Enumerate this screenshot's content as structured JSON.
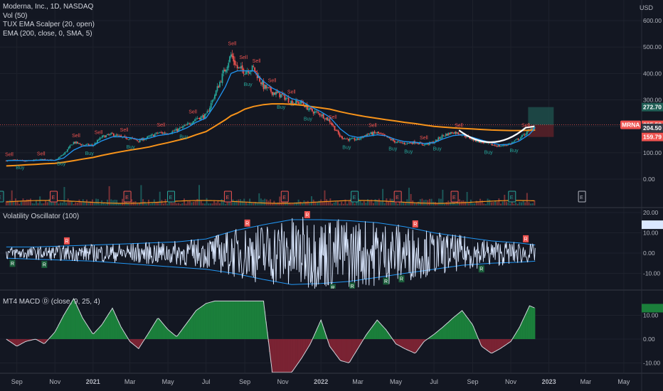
{
  "header": {
    "symbol_line": "Moderna, Inc., 1D, NASDAQ",
    "indicators": [
      "Vol (50)",
      "TUX EMA Scalper (20, open)",
      "EMA (200, close, 0, SMA, 5)"
    ]
  },
  "currency": "USD",
  "pane_titles": {
    "vol_osc": "Volatility Oscillator (100)",
    "macd": "MT4 MACD Ⓓ (close, 9, 25, 4)"
  },
  "price_ticks": [
    "600.00",
    "500.00",
    "400.00",
    "300.00",
    "200.00",
    "100.00",
    "0.00"
  ],
  "osc_ticks": [
    "20.00",
    "10.00",
    "0.00",
    "-10.00"
  ],
  "macd_ticks": [
    "10.00",
    "0.00",
    "-10.00"
  ],
  "date_labels": [
    "Sep",
    "Nov",
    "2021",
    "Mar",
    "May",
    "Jul",
    "Sep",
    "Nov",
    "2022",
    "Mar",
    "May",
    "Jul",
    "Sep",
    "Nov",
    "2023",
    "Mar",
    "May"
  ],
  "price_tags": {
    "target": "272.70",
    "symbol": "MRNA",
    "last": "205.58",
    "entry": "204.50",
    "stop": "159.79"
  },
  "signal_labels": {
    "sell": "Sell",
    "buy": "Buy",
    "earnings": "E",
    "reversal": "R"
  },
  "colors": {
    "background": "#131722",
    "up": "#26a69a",
    "down": "#ef5350",
    "ema_fast": "#2196f3",
    "ema_slow": "#f7931a",
    "osc_line": "#dbe8ff",
    "osc_band": "#2196f3",
    "macd_pos": "#1b7f3b",
    "macd_neg": "#7a2333",
    "target_zone": "#1f4e4a",
    "stop_zone": "#5a2128"
  },
  "chart_data": [
    {
      "type": "candlestick",
      "title": "Moderna, Inc., 1D, NASDAQ",
      "ylabel": "USD",
      "ylim": [
        0,
        640
      ],
      "x": [
        "2020-08-15",
        "2020-09-01",
        "2020-09-15",
        "2020-10-01",
        "2020-10-15",
        "2020-11-01",
        "2020-11-15",
        "2020-12-01",
        "2020-12-15",
        "2021-01-01",
        "2021-01-15",
        "2021-02-01",
        "2021-02-15",
        "2021-03-01",
        "2021-03-15",
        "2021-04-01",
        "2021-04-15",
        "2021-05-01",
        "2021-05-15",
        "2021-06-01",
        "2021-06-15",
        "2021-07-01",
        "2021-07-15",
        "2021-08-01",
        "2021-08-10",
        "2021-08-20",
        "2021-09-01",
        "2021-09-15",
        "2021-10-01",
        "2021-10-15",
        "2021-11-01",
        "2021-11-15",
        "2021-12-01",
        "2021-12-15",
        "2022-01-01",
        "2022-01-15",
        "2022-02-01",
        "2022-02-15",
        "2022-03-01",
        "2022-03-15",
        "2022-04-01",
        "2022-04-15",
        "2022-05-01",
        "2022-05-15",
        "2022-06-01",
        "2022-06-15",
        "2022-07-01",
        "2022-07-15",
        "2022-08-01",
        "2022-08-15",
        "2022-09-01",
        "2022-09-15",
        "2022-10-01",
        "2022-10-15",
        "2022-11-01",
        "2022-11-15",
        "2022-12-01",
        "2022-12-10"
      ],
      "close": [
        70,
        72,
        68,
        72,
        75,
        70,
        95,
        140,
        130,
        128,
        160,
        170,
        158,
        155,
        145,
        160,
        175,
        175,
        185,
        205,
        230,
        240,
        320,
        420,
        470,
        420,
        410,
        420,
        350,
        330,
        315,
        290,
        290,
        260,
        245,
        220,
        160,
        150,
        150,
        170,
        175,
        160,
        140,
        135,
        140,
        130,
        140,
        165,
        178,
        170,
        150,
        140,
        130,
        125,
        135,
        155,
        185,
        205.58
      ],
      "ema_fast": [
        70,
        71,
        70,
        71,
        72,
        71,
        80,
        110,
        125,
        127,
        145,
        160,
        160,
        157,
        150,
        155,
        165,
        170,
        178,
        195,
        215,
        232,
        280,
        350,
        400,
        410,
        410,
        410,
        370,
        345,
        325,
        305,
        295,
        275,
        255,
        235,
        190,
        165,
        158,
        162,
        168,
        164,
        150,
        142,
        140,
        135,
        138,
        152,
        165,
        168,
        158,
        148,
        138,
        130,
        132,
        145,
        170,
        195
      ],
      "ema_slow": [
        50,
        52,
        54,
        56,
        58,
        60,
        64,
        70,
        76,
        82,
        90,
        98,
        104,
        110,
        115,
        122,
        130,
        138,
        146,
        156,
        168,
        180,
        200,
        225,
        240,
        250,
        265,
        275,
        282,
        285,
        285,
        283,
        280,
        275,
        270,
        265,
        255,
        248,
        242,
        236,
        230,
        225,
        220,
        215,
        210,
        205,
        200,
        197,
        194,
        192,
        190,
        188,
        186,
        185,
        184,
        184,
        185,
        186
      ],
      "series_names": [
        "TUX EMA Scalper (20, open)",
        "EMA (200, close, 0, SMA, 5)"
      ]
    },
    {
      "type": "bar",
      "title": "Vol (50)",
      "earnings_dates": [
        "2020-08-05",
        "2020-10-30",
        "2021-02-25",
        "2021-05-06",
        "2021-08-05",
        "2021-11-04",
        "2022-02-24",
        "2022-05-04",
        "2022-08-03",
        "2022-11-03",
        "2023-02-23"
      ]
    },
    {
      "type": "line",
      "title": "Volatility Oscillator (100)",
      "ylim": [
        -16,
        22
      ],
      "x": [
        "2020-08-15",
        "2020-10-01",
        "2020-11-15",
        "2021-01-01",
        "2021-02-15",
        "2021-04-01",
        "2021-05-15",
        "2021-07-01",
        "2021-08-15",
        "2021-10-01",
        "2021-11-15",
        "2022-01-01",
        "2022-02-15",
        "2022-04-01",
        "2022-05-15",
        "2022-07-01",
        "2022-08-15",
        "2022-10-01",
        "2022-11-15",
        "2022-12-10"
      ],
      "upper_band": [
        3,
        3,
        3.5,
        4,
        4.5,
        5,
        5.5,
        7,
        11,
        14,
        16.5,
        16.5,
        16,
        15,
        13,
        10,
        8,
        6,
        5,
        4
      ],
      "lower_band": [
        -2.5,
        -3,
        -3.5,
        -4,
        -5,
        -6,
        -7,
        -8,
        -10,
        -13,
        -15.5,
        -15,
        -14,
        -12,
        -10,
        -8,
        -6,
        -5,
        -4.5,
        -4
      ],
      "last_value": 14
    },
    {
      "type": "bar",
      "title": "MT4 MACD Ⓓ (close, 9, 25, 4)",
      "ylim": [
        -14,
        16
      ],
      "x": [
        "2020-08-15",
        "2020-09-01",
        "2020-09-15",
        "2020-10-01",
        "2020-10-15",
        "2020-11-01",
        "2020-11-15",
        "2020-12-01",
        "2020-12-15",
        "2021-01-01",
        "2021-01-15",
        "2021-02-01",
        "2021-02-15",
        "2021-03-01",
        "2021-03-15",
        "2021-04-01",
        "2021-04-15",
        "2021-05-01",
        "2021-05-15",
        "2021-06-01",
        "2021-06-15",
        "2021-07-01",
        "2021-07-15",
        "2021-08-01",
        "2021-08-15",
        "2021-09-01",
        "2021-09-15",
        "2021-10-01",
        "2021-10-15",
        "2021-11-01",
        "2021-11-15",
        "2021-12-01",
        "2021-12-15",
        "2022-01-01",
        "2022-01-15",
        "2022-02-01",
        "2022-02-15",
        "2022-03-01",
        "2022-03-15",
        "2022-04-01",
        "2022-04-15",
        "2022-05-01",
        "2022-05-15",
        "2022-06-01",
        "2022-06-15",
        "2022-07-01",
        "2022-07-15",
        "2022-08-01",
        "2022-08-15",
        "2022-09-01",
        "2022-09-15",
        "2022-10-01",
        "2022-10-15",
        "2022-11-01",
        "2022-11-15",
        "2022-12-01",
        "2022-12-10"
      ],
      "values": [
        0,
        -3,
        -1,
        0,
        -2,
        3,
        10,
        17,
        9,
        2,
        6,
        13,
        5,
        -1,
        -4,
        3,
        9,
        4,
        1,
        7,
        12,
        15,
        16,
        16,
        16,
        16,
        16,
        16,
        -14,
        -14,
        -14,
        -8,
        -2,
        8,
        -3,
        -9,
        -10,
        -4,
        2,
        8,
        4,
        -2,
        -4,
        -6,
        -1,
        2,
        5,
        9,
        12,
        6,
        -3,
        -6,
        -4,
        -1,
        5,
        14,
        13
      ]
    }
  ]
}
